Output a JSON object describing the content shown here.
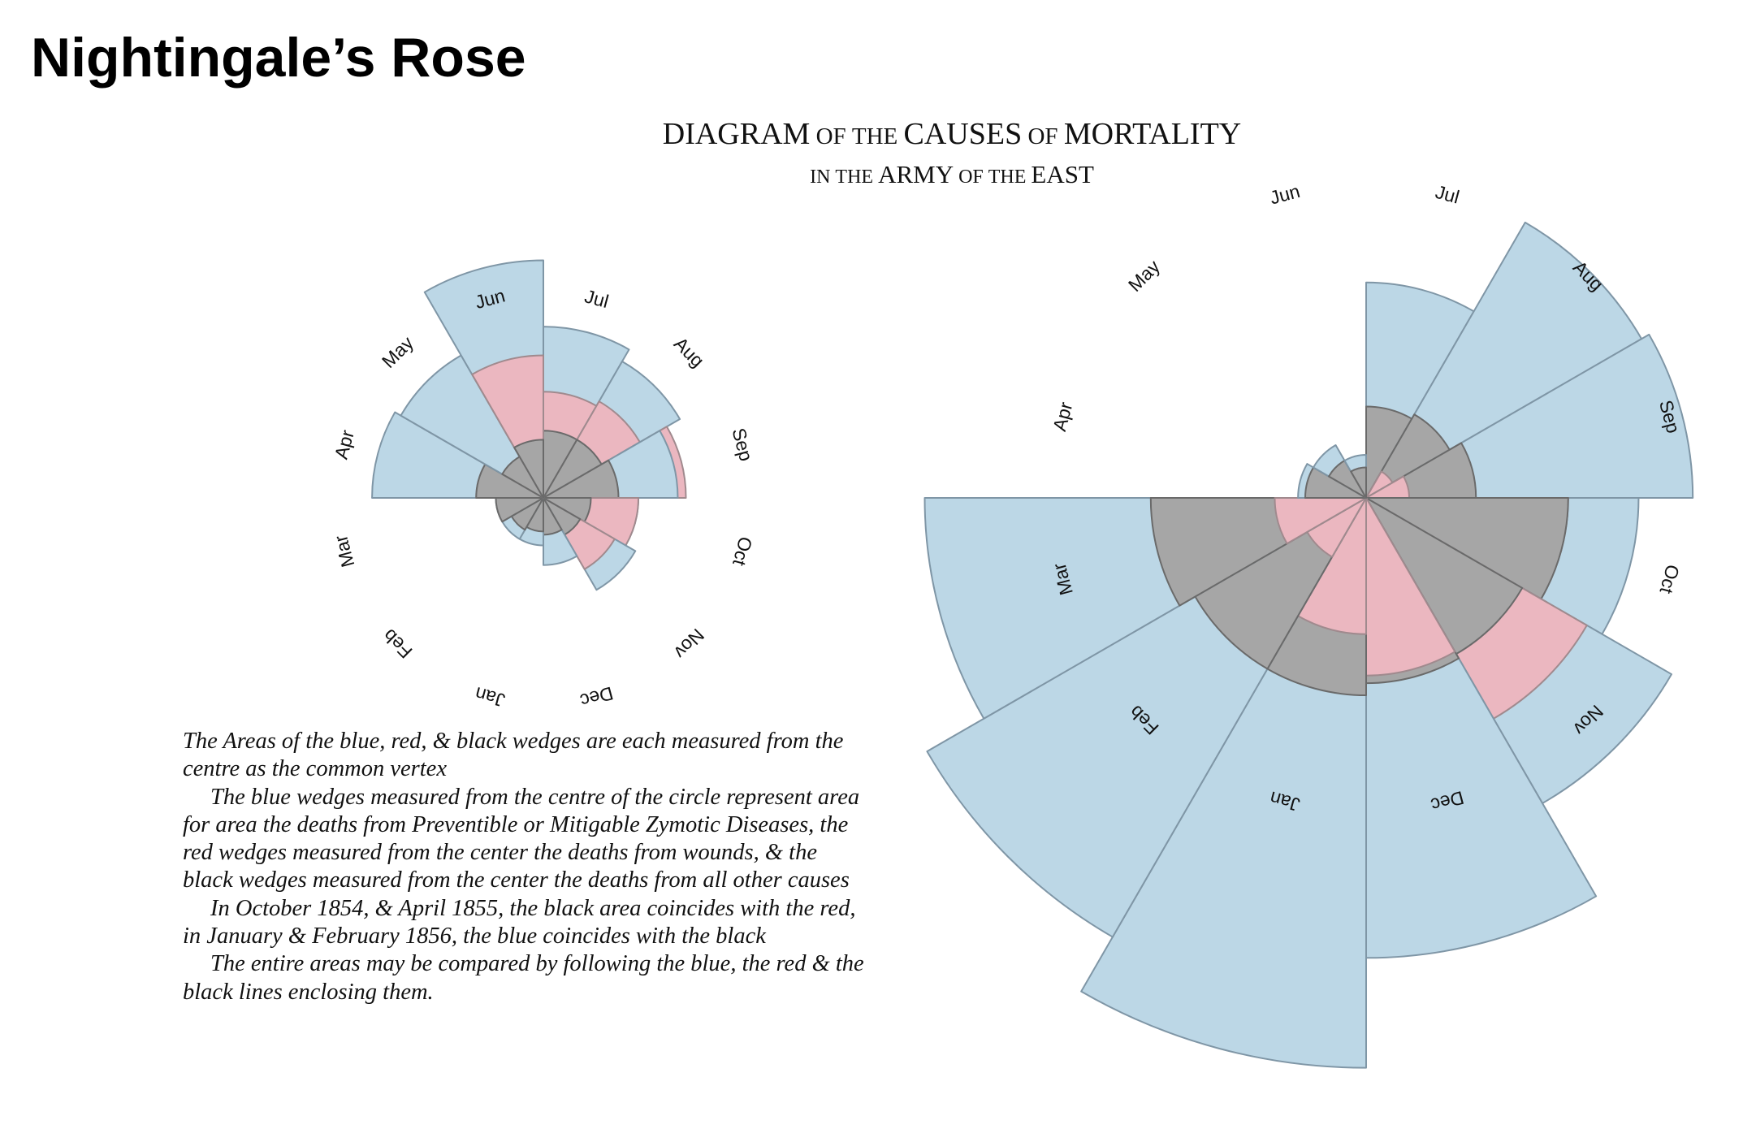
{
  "page": {
    "title": "Nightingale’s Rose"
  },
  "diagram": {
    "title_line1": [
      {
        "text": "DIAGRAM",
        "size": "big"
      },
      {
        "text": " OF THE ",
        "size": "small"
      },
      {
        "text": "CAUSES",
        "size": "big"
      },
      {
        "text": " OF ",
        "size": "small"
      },
      {
        "text": "MORTALITY",
        "size": "big"
      }
    ],
    "title_line2": [
      {
        "text": "IN THE ",
        "size": "small"
      },
      {
        "text": "ARMY",
        "size": "big"
      },
      {
        "text": " OF THE ",
        "size": "small"
      },
      {
        "text": "EAST",
        "size": "big"
      }
    ]
  },
  "legend": {
    "paragraphs": [
      "The Areas of the blue, red, & black wedges are each measured from the centre as the common vertex",
      "The blue wedges measured from the centre of the circle represent area for area the deaths from Preventible or Mitigable Zymotic Diseases, the red wedges measured from the center the deaths from wounds, & the black wedges measured from the center the deaths from all other causes",
      "In October 1854, & April 1855, the black area coincides with the red, in January & February 1856, the blue coincides with the black",
      "The entire areas may be compared by following the blue, the red & the black lines enclosing them."
    ]
  },
  "colors": {
    "zymotic": "#bcd7e6",
    "wounds": "#ebb7c0",
    "other": "#a6a6a6",
    "zymotic_stroke": "#7f96a6",
    "wounds_stroke": "#a08a8e",
    "other_stroke": "#6a6a6a"
  },
  "chart_data": [
    {
      "type": "polar-area",
      "name": "right-rose",
      "months": [
        "Jul",
        "Aug",
        "Sep",
        "Oct",
        "Nov",
        "Dec",
        "Jan",
        "Feb",
        "Mar",
        "Apr",
        "May",
        "Jun"
      ],
      "series": [
        {
          "key": "zymotic",
          "values": [
            5.0,
            10.9,
            11.5,
            8.0,
            13.4,
            22.8,
            35.0,
            27.7,
            21.0,
            0.5,
            0.4,
            0.2
          ]
        },
        {
          "key": "wounds",
          "values": [
            0.0,
            0.1,
            0.2,
            4.4,
            7.0,
            3.4,
            2.0,
            0.5,
            0.9,
            0.0,
            0.0,
            0.1
          ]
        },
        {
          "key": "other",
          "values": [
            0.9,
            1.0,
            1.3,
            4.4,
            3.5,
            3.7,
            4.2,
            4.2,
            5.0,
            0.4,
            0.2,
            0.1
          ]
        }
      ]
    },
    {
      "type": "polar-area",
      "name": "left-rose",
      "months": [
        "Jul",
        "Aug",
        "Sep",
        "Oct",
        "Nov",
        "Dec",
        "Jan",
        "Feb",
        "Mar",
        "Apr",
        "May",
        "Jun"
      ],
      "series": [
        {
          "key": "zymotic",
          "values": [
            1.3,
            1.1,
            0.8,
            0.4,
            0.5,
            0.2,
            0.1,
            0.1,
            0.1,
            1.3,
            1.2,
            2.5
          ]
        },
        {
          "key": "wounds",
          "values": [
            0.5,
            0.55,
            0.9,
            0.4,
            0.3,
            0.0,
            0.0,
            0.0,
            0.0,
            0.2,
            0.1,
            0.9
          ]
        },
        {
          "key": "other",
          "values": [
            0.2,
            0.2,
            0.25,
            0.1,
            0.08,
            0.06,
            0.05,
            0.06,
            0.1,
            0.2,
            0.1,
            0.15
          ]
        }
      ]
    }
  ]
}
